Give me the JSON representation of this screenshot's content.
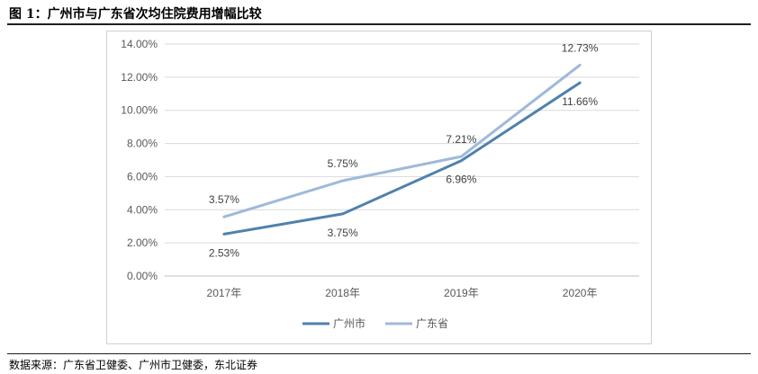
{
  "figure": {
    "title": "图 1：广州市与广东省次均住院费用增幅比较",
    "source": "数据来源：广东省卫健委、广州市卫健委，东北证券"
  },
  "chart_data": {
    "type": "line",
    "title": "",
    "xlabel": "",
    "ylabel": "",
    "categories": [
      "2017年",
      "2018年",
      "2019年",
      "2020年"
    ],
    "ylim": [
      0,
      14
    ],
    "yticks": [
      "0.00%",
      "2.00%",
      "4.00%",
      "6.00%",
      "8.00%",
      "10.00%",
      "12.00%",
      "14.00%"
    ],
    "grid": true,
    "legend": "bottom",
    "series": [
      {
        "name": "广州市",
        "color": "#4f81ad",
        "values": [
          2.53,
          3.75,
          6.96,
          11.66
        ],
        "labels": [
          "2.53%",
          "3.75%",
          "6.96%",
          "11.66%"
        ]
      },
      {
        "name": "广东省",
        "color": "#9fb9d9",
        "values": [
          3.57,
          5.75,
          7.21,
          12.73
        ],
        "labels": [
          "3.57%",
          "5.75%",
          "7.21%",
          "12.73%"
        ]
      }
    ]
  }
}
